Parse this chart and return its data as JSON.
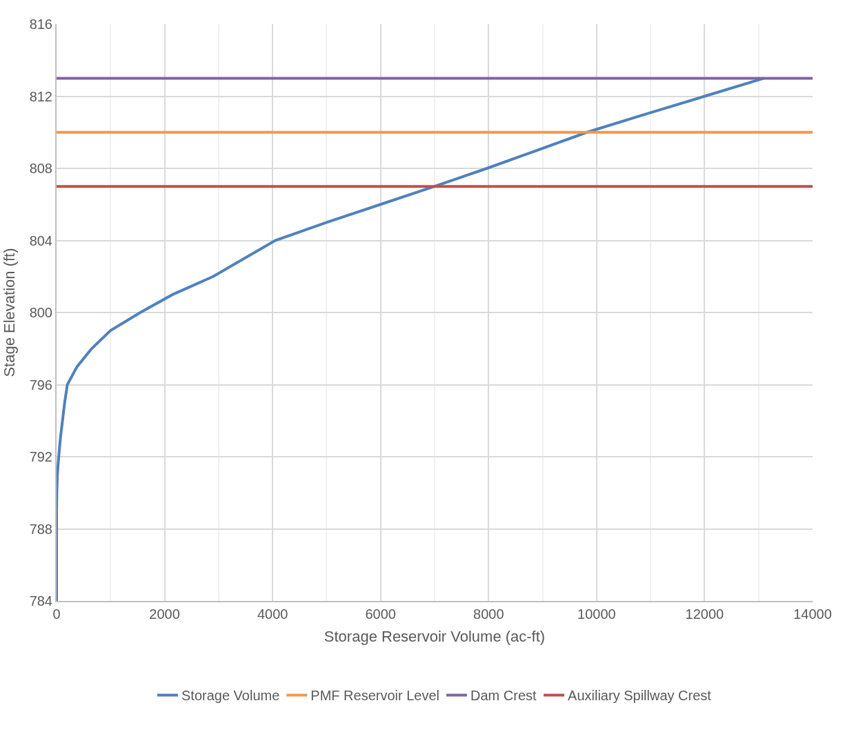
{
  "chart_data": {
    "type": "line",
    "xlabel": "Storage Reservoir Volume (ac-ft)",
    "ylabel": "Stage Elevation (ft)",
    "xlim": [
      0,
      14000
    ],
    "xticks": [
      0,
      2000,
      4000,
      6000,
      8000,
      10000,
      12000,
      14000
    ],
    "ylim": [
      784,
      816
    ],
    "yticks": [
      784,
      788,
      792,
      796,
      800,
      804,
      808,
      812,
      816
    ],
    "grid": true,
    "legend": "bottom",
    "marker": "none",
    "line_style": "solid",
    "series": [
      {
        "name": "Storage Volume",
        "color": "#4f81bd",
        "x": [
          0,
          0,
          5,
          15,
          40,
          70,
          110,
          150,
          200,
          380,
          650,
          1000,
          1550,
          2150,
          2900,
          4050,
          5000,
          6000,
          7000,
          7970,
          8900,
          9820,
          10900,
          12000,
          13100
        ],
        "values": [
          784,
          789,
          790,
          791,
          792,
          793,
          794,
          795,
          796,
          797,
          798,
          799,
          800,
          801,
          802,
          804,
          805,
          806,
          807,
          808,
          809,
          810,
          811,
          812,
          813
        ]
      },
      {
        "name": "PMF Reservoir Level",
        "color": "#f79646",
        "x": [
          0,
          14000
        ],
        "values": [
          810,
          810
        ]
      },
      {
        "name": "Dam Crest",
        "color": "#8064a2",
        "x": [
          0,
          14000
        ],
        "values": [
          813,
          813
        ]
      },
      {
        "name": "Auxiliary Spillway Crest",
        "color": "#c0504d",
        "x": [
          0,
          14000
        ],
        "values": [
          807,
          807
        ]
      }
    ]
  }
}
